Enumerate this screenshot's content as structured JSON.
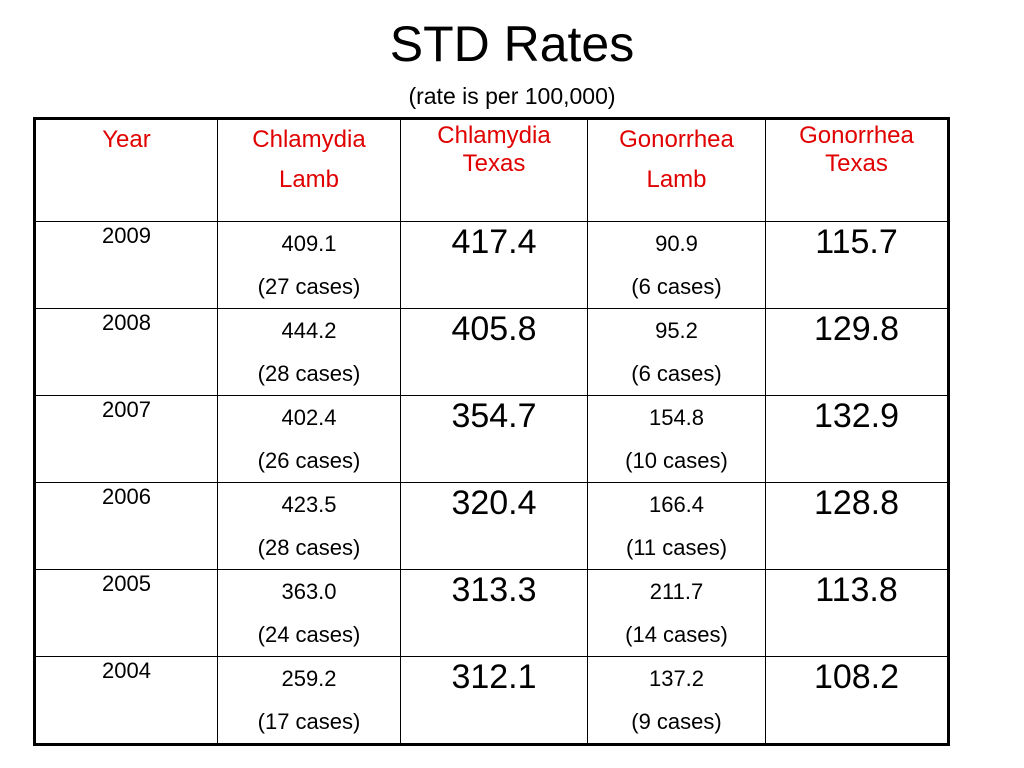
{
  "title": "STD Rates",
  "subtitle": "(rate is per 100,000)",
  "table": {
    "headers": {
      "year": "Year",
      "chlamydia_lamb": [
        "Chlamydia",
        "Lamb"
      ],
      "chlamydia_texas": [
        "Chlamydia",
        "Texas"
      ],
      "gonorrhea_lamb": [
        "Gonorrhea",
        "Lamb"
      ],
      "gonorrhea_texas": [
        "Gonorrhea",
        "Texas"
      ]
    },
    "header_color": "#e00000",
    "rows": [
      {
        "year": "2009",
        "chlamydia_lamb_rate": "409.1",
        "chlamydia_lamb_cases": "(27 cases)",
        "chlamydia_texas": "417.4",
        "gonorrhea_lamb_rate": "90.9",
        "gonorrhea_lamb_cases": "(6 cases)",
        "gonorrhea_texas": "115.7"
      },
      {
        "year": "2008",
        "chlamydia_lamb_rate": "444.2",
        "chlamydia_lamb_cases": "(28 cases)",
        "chlamydia_texas": "405.8",
        "gonorrhea_lamb_rate": "95.2",
        "gonorrhea_lamb_cases": "(6 cases)",
        "gonorrhea_texas": "129.8"
      },
      {
        "year": "2007",
        "chlamydia_lamb_rate": "402.4",
        "chlamydia_lamb_cases": "(26 cases)",
        "chlamydia_texas": "354.7",
        "gonorrhea_lamb_rate": "154.8",
        "gonorrhea_lamb_cases": "(10 cases)",
        "gonorrhea_texas": "132.9"
      },
      {
        "year": "2006",
        "chlamydia_lamb_rate": "423.5",
        "chlamydia_lamb_cases": "(28 cases)",
        "chlamydia_texas": "320.4",
        "gonorrhea_lamb_rate": "166.4",
        "gonorrhea_lamb_cases": "(11 cases)",
        "gonorrhea_texas": "128.8"
      },
      {
        "year": "2005",
        "chlamydia_lamb_rate": "363.0",
        "chlamydia_lamb_cases": "(24 cases)",
        "chlamydia_texas": "313.3",
        "gonorrhea_lamb_rate": "211.7",
        "gonorrhea_lamb_cases": "(14 cases)",
        "gonorrhea_texas": "113.8"
      },
      {
        "year": "2004",
        "chlamydia_lamb_rate": "259.2",
        "chlamydia_lamb_cases": "(17 cases)",
        "chlamydia_texas": "312.1",
        "gonorrhea_lamb_rate": "137.2",
        "gonorrhea_lamb_cases": "(9 cases)",
        "gonorrhea_texas": "108.2"
      }
    ]
  }
}
